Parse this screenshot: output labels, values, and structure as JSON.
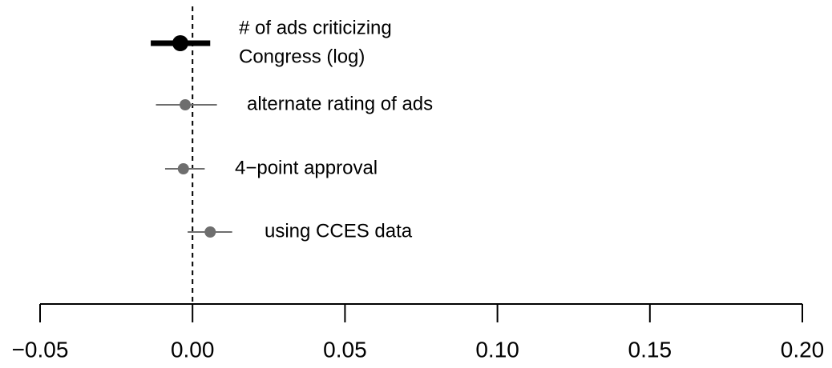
{
  "chart_data": {
    "type": "dot-whisker",
    "labels": [
      [
        "# of ads criticizing",
        "Congress (log)"
      ],
      [
        "alternate rating of ads"
      ],
      [
        "4−point approval"
      ],
      [
        "using CCES data"
      ]
    ],
    "estimates": [
      -0.004,
      -0.0024,
      -0.003,
      0.0058
    ],
    "lower": [
      -0.0137,
      -0.012,
      -0.009,
      -0.0016
    ],
    "upper": [
      0.0058,
      0.008,
      0.004,
      0.013
    ],
    "colors": [
      "#000000",
      "#6e6e6e",
      "#6e6e6e",
      "#6e6e6e"
    ],
    "emphasis": [
      true,
      false,
      false,
      false
    ],
    "reference_line": 0,
    "xlim": [
      -0.05,
      0.2
    ],
    "xticks": [
      {
        "value": -0.05,
        "label": "−0.05"
      },
      {
        "value": 0,
        "label": "0.00"
      },
      {
        "value": 0.05,
        "label": "0.05"
      },
      {
        "value": 0.1,
        "label": "0.10"
      },
      {
        "value": 0.15,
        "label": "0.15"
      },
      {
        "value": 0.2,
        "label": "0.20"
      }
    ]
  }
}
